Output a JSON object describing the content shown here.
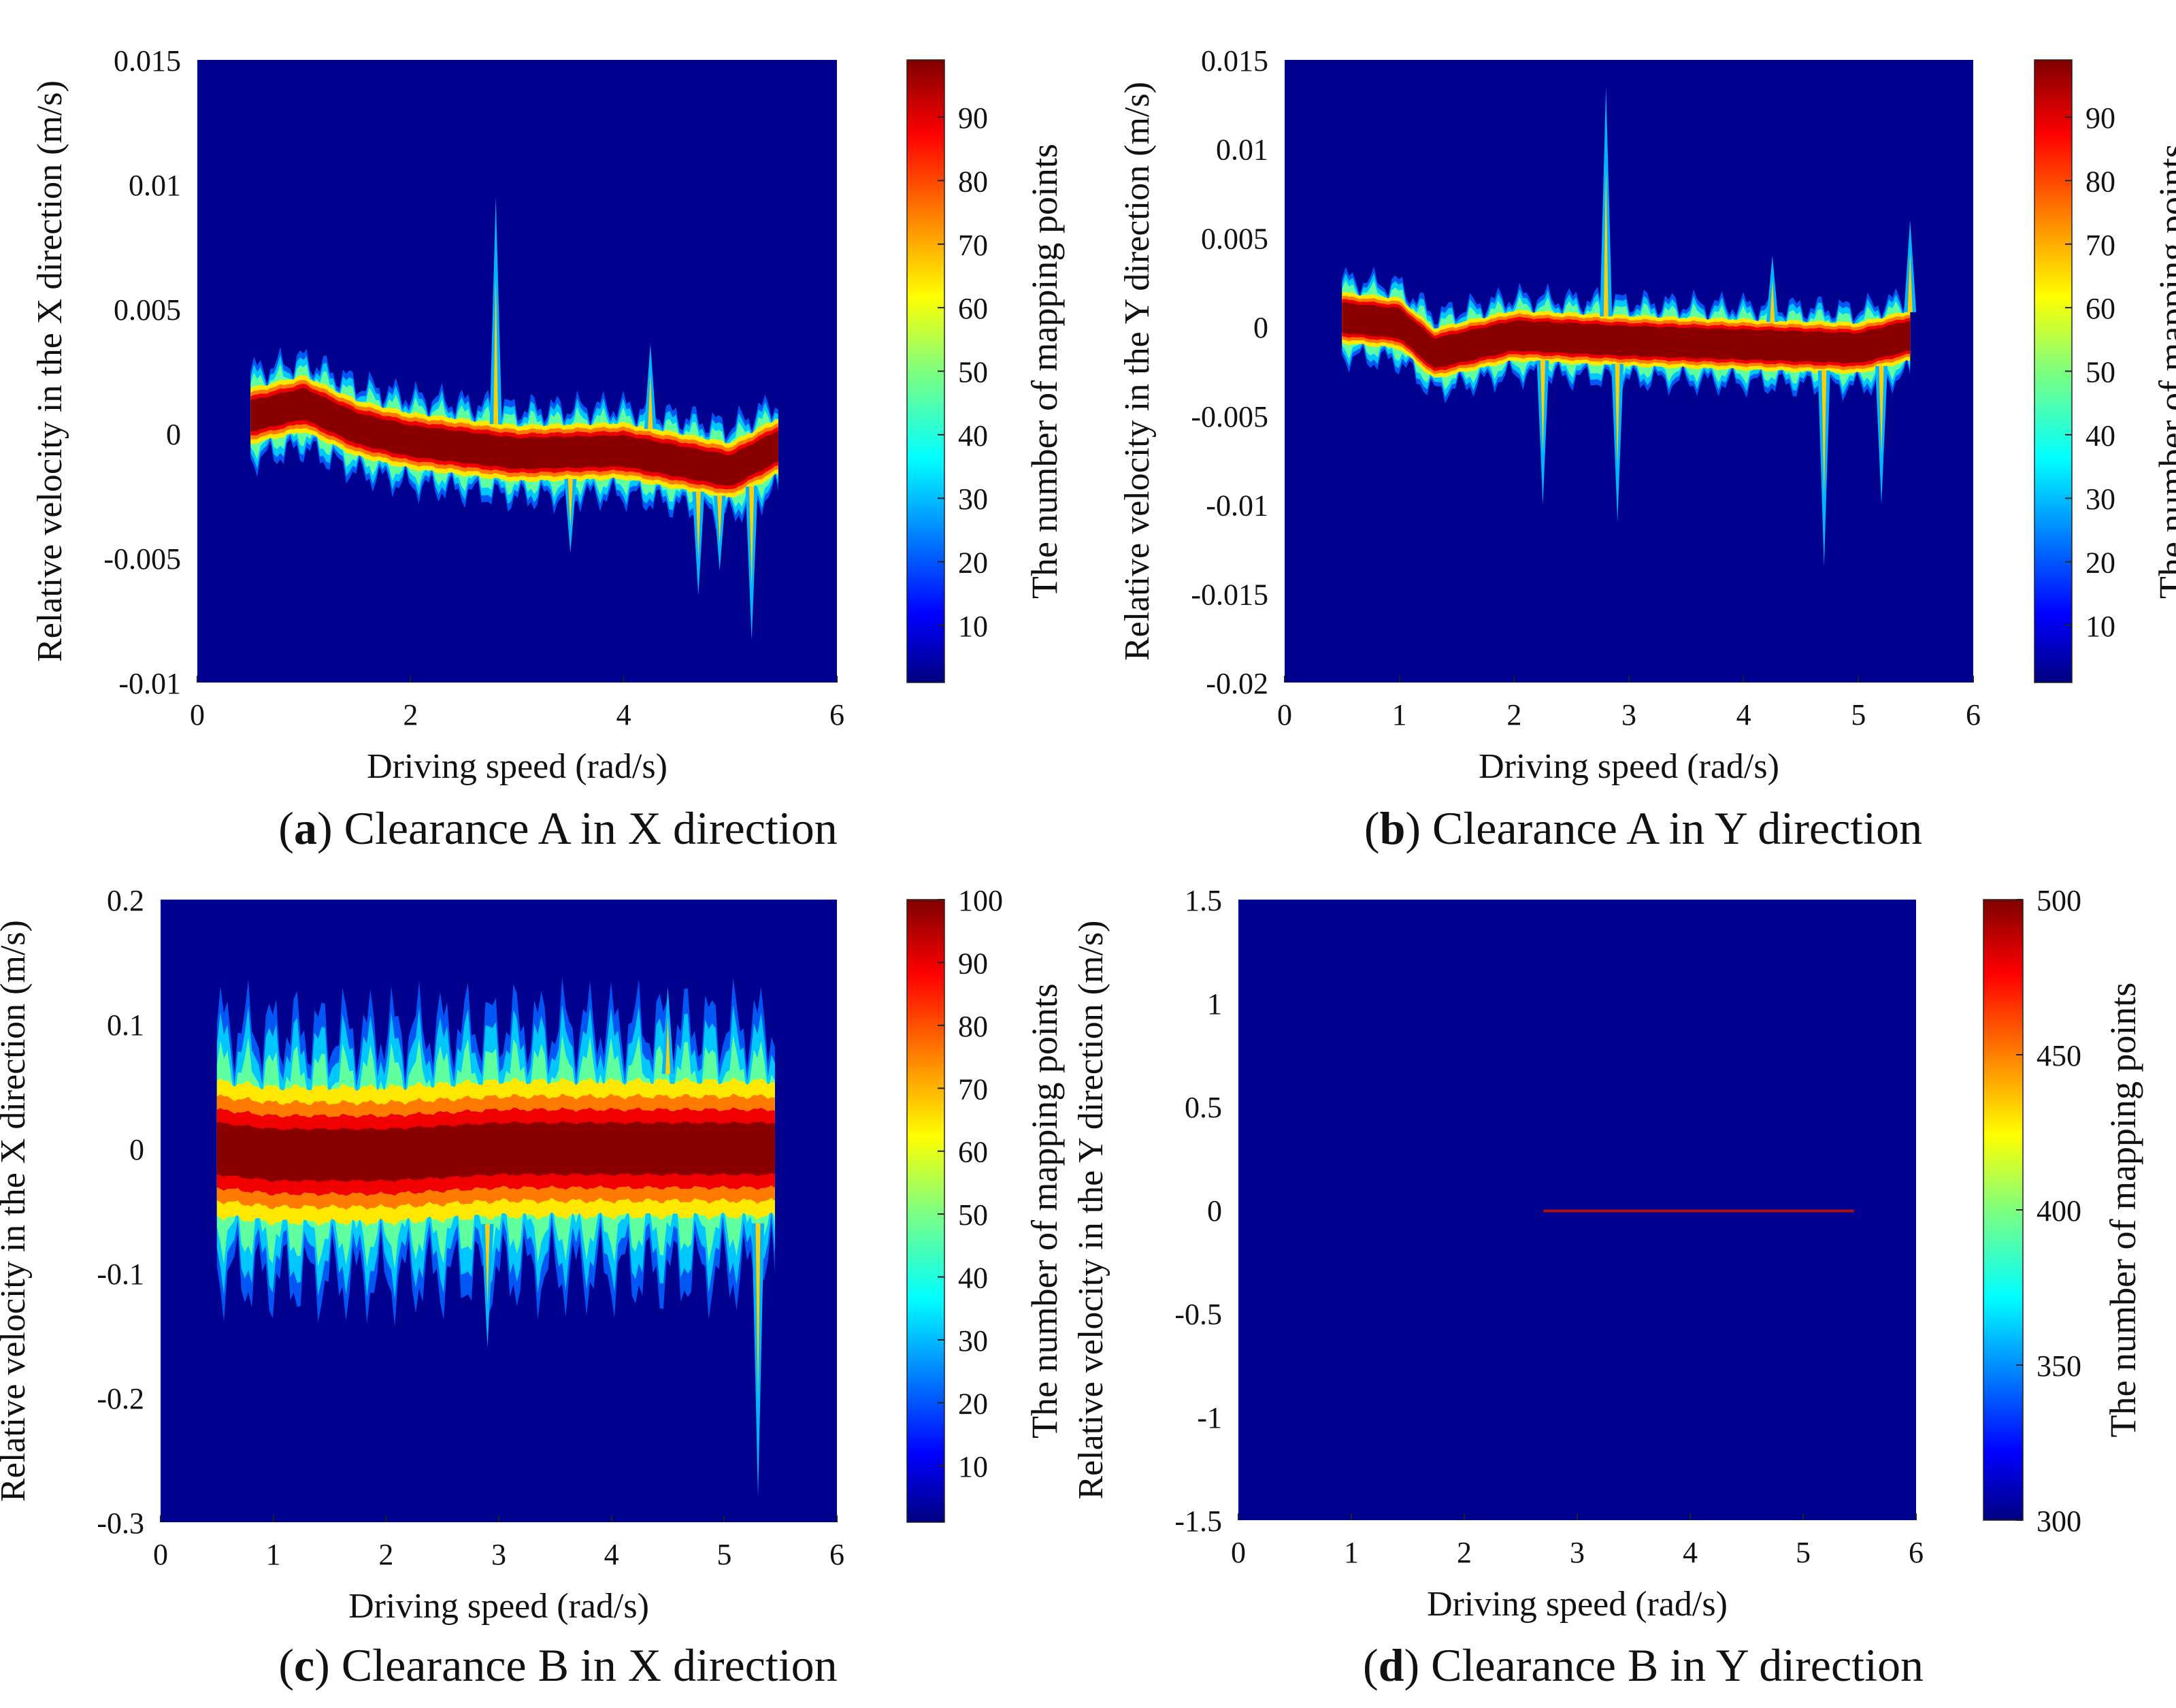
{
  "colormap": {
    "name": "jet",
    "stops": [
      "#00007f",
      "#0000ff",
      "#007fff",
      "#00ffff",
      "#7fff7f",
      "#ffff00",
      "#ff7f00",
      "#ff0000",
      "#7f0000"
    ],
    "background": "#00008f"
  },
  "chart_data": [
    {
      "id": "a",
      "type": "heatmap",
      "caption_letter": "a",
      "caption_text": ") Clearance A in X direction",
      "caption_open": "(",
      "xlabel": "Driving speed (rad/s)",
      "ylabel": "Relative velocity in the X direction (m/s)",
      "colorbar_label": "The number of mapping points",
      "xlim": [
        0,
        6
      ],
      "ylim": [
        -0.01,
        0.015
      ],
      "xticks": [
        "0",
        "2",
        "4",
        "6"
      ],
      "yticks": [
        "0.015",
        "0.01",
        "0.005",
        "0",
        "-0.005",
        "-0.01"
      ],
      "colorbar_range": [
        1,
        99
      ],
      "colorbar_ticks": [
        "90",
        "80",
        "70",
        "60",
        "50",
        "40",
        "30",
        "20",
        "10"
      ],
      "band": {
        "x_start": 0.5,
        "x_end": 5.45,
        "center": [
          [
            0.5,
            0.0007
          ],
          [
            1.0,
            0.0012
          ],
          [
            1.5,
            0.0002
          ],
          [
            2.0,
            -0.0003
          ],
          [
            3.0,
            -0.0008
          ],
          [
            4.0,
            -0.0007
          ],
          [
            5.0,
            -0.0015
          ],
          [
            5.45,
            -0.0005
          ]
        ],
        "core_halfwidth": 0.0005,
        "halo_halfwidth": 0.0018,
        "spikes": [
          [
            2.8,
            0.0095,
            "up"
          ],
          [
            4.25,
            0.0036,
            "up"
          ],
          [
            5.2,
            -0.0083,
            "down"
          ],
          [
            4.7,
            -0.0065,
            "down"
          ],
          [
            3.5,
            -0.0048,
            "down"
          ],
          [
            4.9,
            -0.0055,
            "down"
          ]
        ]
      }
    },
    {
      "id": "b",
      "type": "heatmap",
      "caption_letter": "b",
      "caption_text": ") Clearance A in Y direction",
      "caption_open": "(",
      "xlabel": "Driving speed (rad/s)",
      "ylabel": "Relative velocity in the Y direction (m/s)",
      "colorbar_label": "The number of mapping points",
      "xlim": [
        0,
        6
      ],
      "ylim": [
        -0.02,
        0.015
      ],
      "xticks": [
        "0",
        "1",
        "2",
        "3",
        "4",
        "5",
        "6"
      ],
      "yticks": [
        "0.015",
        "0.01",
        "0.005",
        "0",
        "-0.005",
        "-0.01",
        "-0.015",
        "-0.02"
      ],
      "colorbar_range": [
        1,
        99
      ],
      "colorbar_ticks": [
        "90",
        "80",
        "70",
        "60",
        "50",
        "40",
        "30",
        "20",
        "10"
      ],
      "band": {
        "x_start": 0.5,
        "x_end": 5.45,
        "center": [
          [
            0.5,
            0.0005
          ],
          [
            1.0,
            0.0002
          ],
          [
            1.3,
            -0.0015
          ],
          [
            2.0,
            -0.0005
          ],
          [
            3.0,
            -0.0008
          ],
          [
            4.0,
            -0.001
          ],
          [
            5.0,
            -0.0012
          ],
          [
            5.45,
            -0.0005
          ]
        ],
        "core_halfwidth": 0.0007,
        "halo_halfwidth": 0.0022,
        "spikes": [
          [
            2.8,
            0.0135,
            "up"
          ],
          [
            4.7,
            -0.0135,
            "down"
          ],
          [
            2.9,
            -0.011,
            "down"
          ],
          [
            2.25,
            -0.01,
            "down"
          ],
          [
            5.2,
            -0.01,
            "down"
          ],
          [
            5.45,
            0.006,
            "up"
          ],
          [
            4.25,
            0.004,
            "up"
          ]
        ]
      }
    },
    {
      "id": "c",
      "type": "heatmap",
      "caption_letter": "c",
      "caption_text": ") Clearance B in X direction",
      "caption_open": "(",
      "xlabel": "Driving speed (rad/s)",
      "ylabel": "Relative velocity in the X direction (m/s)",
      "colorbar_label": "The number of mapping points",
      "xlim": [
        0,
        6
      ],
      "ylim": [
        -0.3,
        0.2
      ],
      "xticks": [
        "0",
        "1",
        "2",
        "3",
        "4",
        "5",
        "6"
      ],
      "yticks": [
        "0.2",
        "0.1",
        "0",
        "-0.1",
        "-0.2",
        "-0.3"
      ],
      "colorbar_range": [
        1,
        100
      ],
      "colorbar_ticks": [
        "100",
        "90",
        "80",
        "70",
        "60",
        "50",
        "40",
        "30",
        "20",
        "10"
      ],
      "band": {
        "x_start": 0.5,
        "x_end": 5.45,
        "center": [
          [
            0.5,
            0.0
          ],
          [
            1.0,
            -0.005
          ],
          [
            2.0,
            -0.005
          ],
          [
            3.0,
            0.0
          ],
          [
            4.0,
            0.0
          ],
          [
            5.45,
            0.0
          ]
        ],
        "core_halfwidth": 0.012,
        "halo_halfwidth": 0.1,
        "spikes": [
          [
            5.3,
            -0.28,
            "down"
          ],
          [
            2.9,
            -0.16,
            "down"
          ],
          [
            4.5,
            0.13,
            "up"
          ]
        ]
      }
    },
    {
      "id": "d",
      "type": "heatmap",
      "caption_letter": "d",
      "caption_text": ") Clearance B in Y direction",
      "caption_open": "(",
      "xlabel": "Driving speed (rad/s)",
      "ylabel": "Relative velocity in the Y direction (m/s)",
      "colorbar_label": "The number of mapping points",
      "xlim": [
        0,
        6
      ],
      "ylim": [
        -1.5,
        1.5
      ],
      "xticks": [
        "0",
        "1",
        "2",
        "3",
        "4",
        "5",
        "6"
      ],
      "yticks": [
        "1.5",
        "1",
        "0.5",
        "0",
        "-0.5",
        "-1",
        "-1.5"
      ],
      "colorbar_range": [
        300,
        500
      ],
      "colorbar_ticks": [
        "500",
        "450",
        "400",
        "350",
        "300"
      ],
      "line": {
        "x_start": 2.7,
        "x_end": 5.45,
        "y": -0.005
      }
    }
  ]
}
